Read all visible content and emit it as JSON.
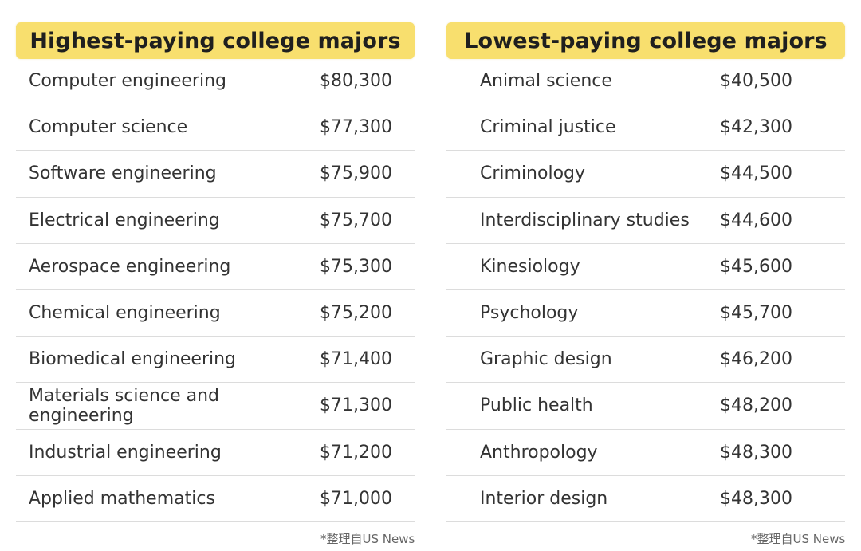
{
  "highest": {
    "title": "Highest-paying college majors",
    "rows": [
      {
        "major": "Computer engineering",
        "salary": "$80,300"
      },
      {
        "major": "Computer science",
        "salary": "$77,300"
      },
      {
        "major": "Software engineering",
        "salary": "$75,900"
      },
      {
        "major": "Electrical engineering",
        "salary": "$75,700"
      },
      {
        "major": "Aerospace engineering",
        "salary": "$75,300"
      },
      {
        "major": "Chemical engineering",
        "salary": "$75,200"
      },
      {
        "major": "Biomedical engineering",
        "salary": "$71,400"
      },
      {
        "major": "Materials science and engineering",
        "salary": "$71,300"
      },
      {
        "major": "Industrial engineering",
        "salary": "$71,200"
      },
      {
        "major": "Applied mathematics",
        "salary": "$71,000"
      }
    ],
    "source": "*整理自US News"
  },
  "lowest": {
    "title": "Lowest-paying college majors",
    "rows": [
      {
        "major": "Animal science",
        "salary": "$40,500"
      },
      {
        "major": "Criminal justice",
        "salary": "$42,300"
      },
      {
        "major": "Criminology",
        "salary": "$44,500"
      },
      {
        "major": "Interdisciplinary studies",
        "salary": "$44,600"
      },
      {
        "major": "Kinesiology",
        "salary": "$45,600"
      },
      {
        "major": "Psychology",
        "salary": "$45,700"
      },
      {
        "major": "Graphic design",
        "salary": "$46,200"
      },
      {
        "major": "Public health",
        "salary": "$48,200"
      },
      {
        "major": "Anthropology",
        "salary": "$48,300"
      },
      {
        "major": "Interior design",
        "salary": "$48,300"
      }
    ],
    "source": "*整理自US News"
  },
  "colors": {
    "title_background": "#f8df6e",
    "row_divider": "#dcdcdc"
  }
}
